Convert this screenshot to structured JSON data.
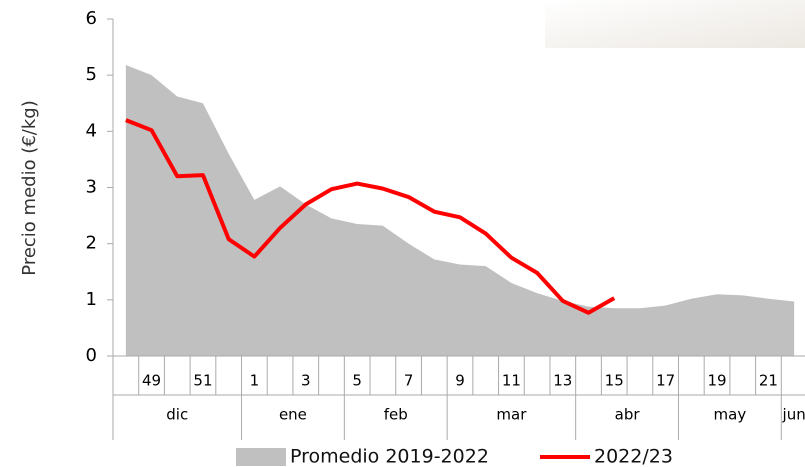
{
  "chart_data": {
    "type": "area-line",
    "y_label": "Precio medio (€/kg)",
    "categories": [
      null,
      "49",
      null,
      "51",
      null,
      "1",
      null,
      "3",
      null,
      "5",
      null,
      "7",
      null,
      "9",
      null,
      "11",
      null,
      "13",
      null,
      "15",
      null,
      "17",
      null,
      "19",
      null,
      "21",
      null
    ],
    "groups": [
      {
        "label": "dic",
        "span": 5
      },
      {
        "label": "ene",
        "span": 4
      },
      {
        "label": "feb",
        "span": 4
      },
      {
        "label": "mar",
        "span": 5
      },
      {
        "label": "abr",
        "span": 4
      },
      {
        "label": "may",
        "span": 4
      },
      {
        "label": "jun",
        "span": 1
      }
    ],
    "series": [
      {
        "name": "Promedio 2019-2022",
        "kind": "area",
        "color": "#c0c0c0",
        "values": [
          5.18,
          5.0,
          4.62,
          4.5,
          3.6,
          2.78,
          3.02,
          2.7,
          2.45,
          2.35,
          2.32,
          2.0,
          1.72,
          1.63,
          1.6,
          1.3,
          1.12,
          0.98,
          0.88,
          0.85,
          0.85,
          0.9,
          1.02,
          1.1,
          1.08,
          1.02,
          0.97
        ]
      },
      {
        "name": "2022/23",
        "kind": "line",
        "color": "#ff0000",
        "values": [
          4.2,
          4.02,
          3.2,
          3.22,
          2.08,
          1.77,
          2.28,
          2.7,
          2.97,
          3.07,
          2.98,
          2.83,
          2.57,
          2.47,
          2.18,
          1.75,
          1.48,
          0.98,
          0.77,
          1.03,
          null,
          null,
          null,
          null,
          null,
          null,
          null
        ]
      }
    ],
    "ylim": [
      0,
      6
    ],
    "yticks": [
      0,
      1,
      2,
      3,
      4,
      5,
      6
    ],
    "grid": false,
    "legend": "bottom"
  }
}
